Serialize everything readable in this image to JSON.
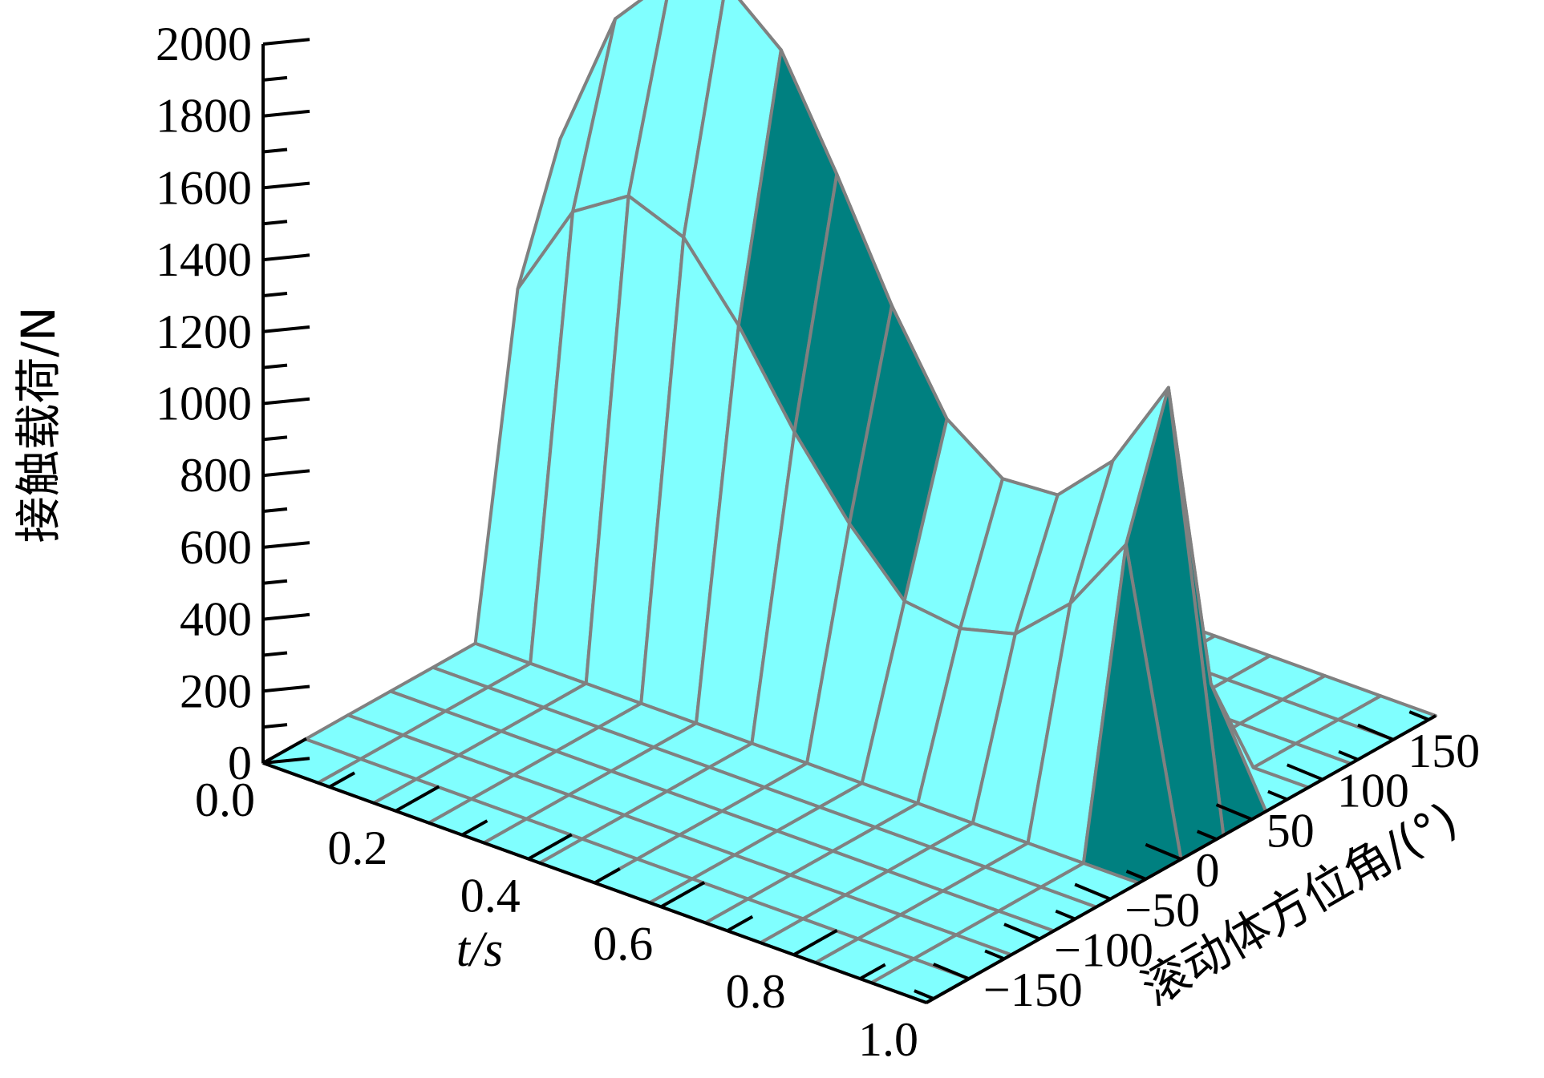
{
  "chart_data": {
    "type": "surface3d",
    "zlabel": "接触载荷/N",
    "xlabel": "t/s",
    "ylabel": "滚动体方位角/(°)",
    "x_ticks": [
      "0.0",
      "0.2",
      "0.4",
      "0.6",
      "0.8",
      "1.0"
    ],
    "y_ticks": [
      "−150",
      "−100",
      "−50",
      "0",
      "50",
      "100",
      "150"
    ],
    "z_ticks": [
      "0",
      "200",
      "400",
      "600",
      "800",
      "1000",
      "1200",
      "1400",
      "1600",
      "1800",
      "2000"
    ],
    "xlim": [
      0,
      1
    ],
    "ylim": [
      -180,
      180
    ],
    "zlim": [
      0,
      2000
    ],
    "x": [
      0.0,
      0.083,
      0.167,
      0.25,
      0.333,
      0.417,
      0.5,
      0.583,
      0.667,
      0.75,
      0.833,
      0.917,
      1.0
    ],
    "y": [
      -180,
      -150,
      -120,
      -90,
      -60,
      -30,
      0,
      30,
      60,
      90,
      120,
      150,
      180
    ],
    "z_profiles": [
      {
        "y": -180,
        "values": [
          0,
          0,
          0,
          0,
          0,
          0,
          0,
          0,
          0,
          0,
          0,
          0,
          0
        ]
      },
      {
        "y": -150,
        "values": [
          0,
          0,
          0,
          0,
          0,
          0,
          0,
          0,
          0,
          0,
          0,
          0,
          0
        ]
      },
      {
        "y": -120,
        "values": [
          0,
          0,
          0,
          0,
          0,
          0,
          0,
          0,
          0,
          0,
          0,
          0,
          0
        ]
      },
      {
        "y": -90,
        "values": [
          0,
          0,
          0,
          0,
          0,
          0,
          0,
          0,
          0,
          0,
          0,
          0,
          0
        ]
      },
      {
        "y": -60,
        "values": [
          0,
          0,
          0,
          0,
          0,
          0,
          0,
          0,
          0,
          0,
          0,
          0,
          0
        ]
      },
      {
        "y": -30,
        "values": [
          0,
          0,
          0,
          0,
          0,
          0,
          0,
          0,
          0,
          0,
          0,
          0,
          0
        ]
      },
      {
        "y": 0,
        "values": [
          920,
          1190,
          1290,
          1230,
          1040,
          800,
          600,
          440,
          420,
          460,
          600,
          820,
          0
        ]
      },
      {
        "y": 30,
        "values": [
          1270,
          1660,
          1830,
          1870,
          1740,
          1450,
          1140,
          880,
          770,
          780,
          930,
          1190,
          0
        ]
      },
      {
        "y": 60,
        "values": [
          0,
          0,
          0,
          0,
          0,
          0,
          0,
          0,
          0,
          0,
          0,
          300,
          0
        ]
      },
      {
        "y": 90,
        "values": [
          0,
          0,
          0,
          0,
          0,
          0,
          0,
          0,
          0,
          0,
          0,
          0,
          0
        ]
      },
      {
        "y": 120,
        "values": [
          0,
          0,
          0,
          0,
          0,
          0,
          0,
          0,
          0,
          0,
          0,
          0,
          0
        ]
      },
      {
        "y": 150,
        "values": [
          0,
          0,
          0,
          0,
          0,
          0,
          0,
          0,
          0,
          0,
          0,
          0,
          0
        ]
      },
      {
        "y": 180,
        "values": [
          0,
          0,
          0,
          0,
          0,
          0,
          0,
          0,
          0,
          0,
          0,
          0,
          0
        ]
      }
    ],
    "colors": {
      "surface_top": "#80ffff",
      "surface_side": "#008080",
      "mesh": "#808080"
    },
    "grid": false
  }
}
